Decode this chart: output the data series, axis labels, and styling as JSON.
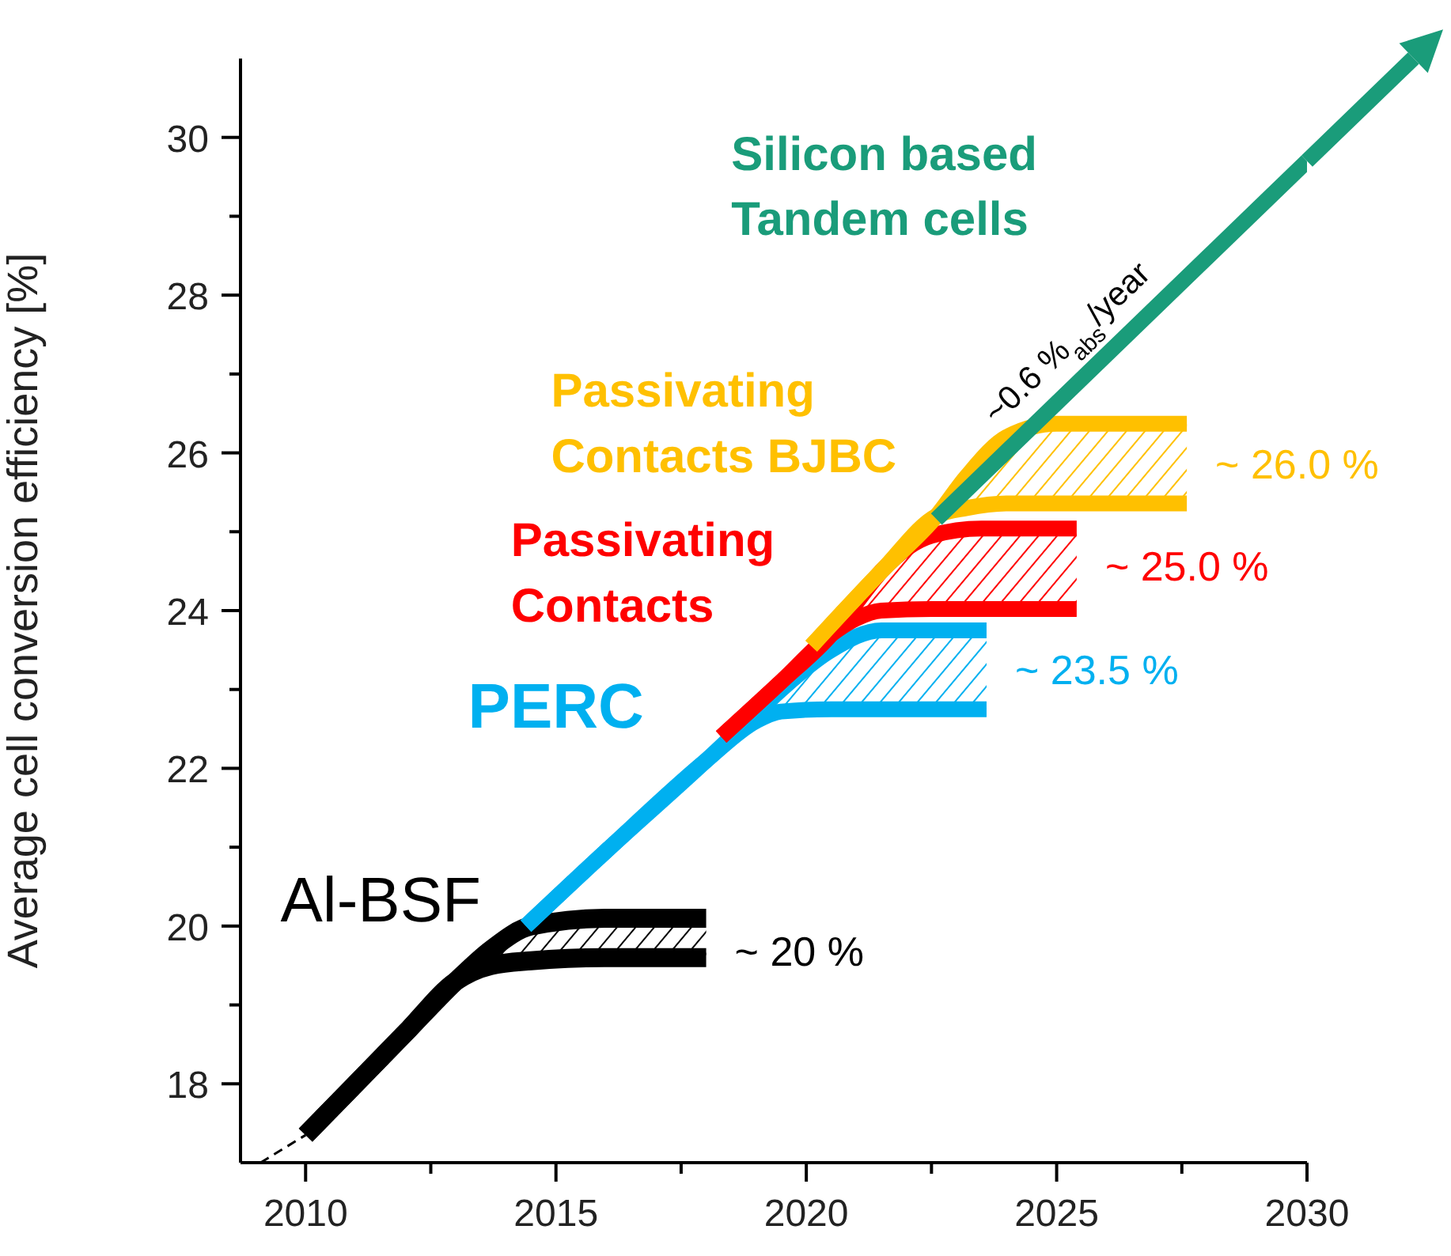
{
  "chart_data": {
    "type": "line",
    "ylabel": "Average cell conversion efficiency [%]",
    "xlim": [
      2008.7,
      2030
    ],
    "xticks": [
      2010,
      {
        "value": 2012.5,
        "label": null
      },
      2015,
      {
        "value": 2017.5,
        "label": null
      },
      2020,
      {
        "value": 2022.5,
        "label": null
      },
      2025,
      {
        "value": 2027.5,
        "label": null
      },
      2030
    ],
    "ylim": [
      17,
      31
    ],
    "yticks": [
      18,
      {
        "value": 19,
        "label": null
      },
      20,
      {
        "value": 21,
        "label": null
      },
      22,
      {
        "value": 23,
        "label": null
      },
      24,
      {
        "value": 25,
        "label": null
      },
      26,
      {
        "value": 27,
        "label": null
      },
      28,
      {
        "value": 29,
        "label": null
      },
      30
    ],
    "marker": "none",
    "line_style": "solid",
    "series": [
      {
        "color": "#000000",
        "line_style": "dashed",
        "x": [
          2009.1,
          2010
        ],
        "values": [
          17.0,
          17.35
        ]
      },
      {
        "name": "Al-BSF",
        "color": "#000000",
        "x": [
          2010,
          2011,
          2012,
          2013,
          2013.7,
          2014.5,
          2016,
          2018
        ],
        "values": [
          17.35,
          18.0,
          18.65,
          19.3,
          19.7,
          20.0,
          20.1,
          20.1
        ],
        "upper": [
          17.35,
          18.0,
          18.65,
          19.3,
          19.7,
          20.0,
          20.1,
          20.1
        ],
        "lower": [
          17.35,
          18.0,
          18.65,
          19.3,
          19.5,
          19.56,
          19.6,
          19.6
        ]
      },
      {
        "name": "PERC",
        "color": "#00b0f0",
        "x": [
          2014.4,
          2016,
          2018,
          2019,
          2019.5,
          2020.5,
          2021.5,
          2023.6
        ],
        "values": [
          20.0,
          20.95,
          22.1,
          22.7,
          23.0,
          23.5,
          23.75,
          23.75
        ],
        "upper": [
          20.0,
          20.95,
          22.1,
          22.7,
          23.0,
          23.5,
          23.75,
          23.75
        ],
        "lower": [
          20.0,
          20.95,
          22.1,
          22.6,
          22.72,
          22.75,
          22.75,
          22.75
        ]
      },
      {
        "name": "Passivating Contacts",
        "color": "#ff0000",
        "x": [
          2018.3,
          2019.5,
          2020.5,
          2021,
          2021.5,
          2022.5,
          2023.5,
          2025.4
        ],
        "values": [
          22.4,
          23.1,
          23.7,
          24.1,
          24.5,
          24.95,
          25.04,
          25.04
        ],
        "upper": [
          22.4,
          23.1,
          23.7,
          24.1,
          24.5,
          24.95,
          25.04,
          25.04
        ],
        "lower": [
          22.4,
          23.1,
          23.7,
          23.9,
          24.0,
          24.02,
          24.02,
          24.02
        ]
      },
      {
        "name": "Passivating Contacts BJBC",
        "color": "#ffc000",
        "x": [
          2020.1,
          2021.5,
          2022.6,
          2023.2,
          2024,
          2025,
          2027.6
        ],
        "values": [
          23.55,
          24.5,
          25.2,
          25.7,
          26.2,
          26.37,
          26.37
        ],
        "upper": [
          23.55,
          24.5,
          25.2,
          25.7,
          26.2,
          26.37,
          26.37
        ],
        "lower": [
          23.55,
          24.5,
          25.2,
          25.3,
          25.36,
          25.36,
          25.36
        ]
      },
      {
        "name": "Silicon based Tandem cells",
        "color": "#1a9c7a",
        "x": [
          2022.6,
          2030
        ],
        "values": [
          25.16,
          29.7
        ]
      }
    ],
    "annotations": [
      {
        "text": "~ 20 %",
        "x": 2018,
        "y": 19.68
      },
      {
        "text": "~ 23.5 %",
        "x": 2023.6,
        "y": 23.25
      },
      {
        "text": "~ 25.0 %",
        "x": 2025.4,
        "y": 24.56
      },
      {
        "text": "~ 26.0 %",
        "x": 2027.6,
        "y": 25.86
      },
      "~0.6 %$_{abs}$/year"
    ]
  }
}
